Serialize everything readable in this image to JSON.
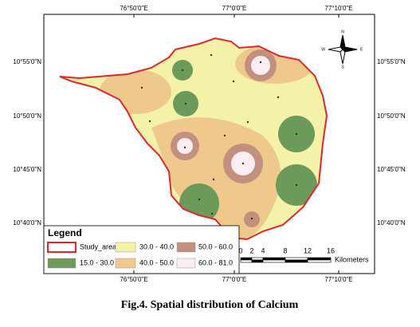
{
  "map": {
    "top_labels": [
      "76°50'0\"E",
      "77°0'0\"E",
      "77°10'0\"E"
    ],
    "bottom_labels": [
      "76°50'0\"E",
      "77°0'0\"E",
      "77°10'0\"E"
    ],
    "left_labels": [
      "10°55'0\"N",
      "10°50'0\"N",
      "10°45'0\"N",
      "10°40'0\"N"
    ],
    "right_labels": [
      "10°55'0\"N",
      "10°50'0\"N",
      "10°45'0\"N",
      "10°40'0\"N"
    ],
    "compass": {
      "north": "N",
      "south": "S",
      "east": "E",
      "west": "W"
    }
  },
  "legend": {
    "title": "Legend",
    "items": [
      "Study_area",
      "30.0 - 40.0",
      "50.0 - 60.0",
      "15.0 - 30.0",
      "40.0 - 50.0",
      "60.0 - 81.0"
    ]
  },
  "scale_bar": {
    "labels": [
      0,
      2,
      4,
      8,
      12,
      16
    ],
    "unit": "Kilometers"
  },
  "caption": "Fig.4. Spatial distribution  of Calcium"
}
